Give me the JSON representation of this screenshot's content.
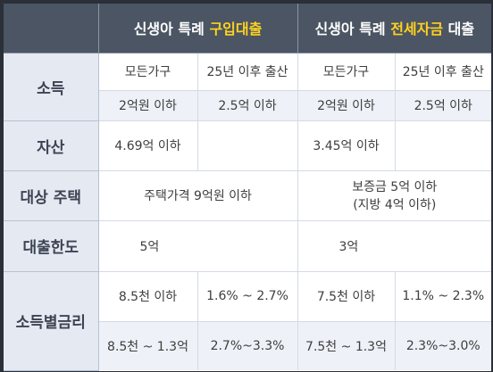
{
  "header": {
    "purchase_prefix": "신생아 특례 ",
    "purchase_highlight": "구입대출",
    "lease_prefix": "신생아 특례 ",
    "lease_highlight": "전세자금",
    "lease_suffix": " 대출",
    "highlight_color": "#ffd21f"
  },
  "rows": {
    "income": {
      "label": "소득",
      "purchase_all": "모든가구",
      "purchase_birth": "25년 이후 출산",
      "lease_all": "모든가구",
      "lease_birth": "25년 이후 출산",
      "purchase_all_limit": "2억원 이하",
      "purchase_birth_limit": "2.5억 이하",
      "lease_all_limit": "2억원 이하",
      "lease_birth_limit": "2.5억 이하"
    },
    "assets": {
      "label": "자산",
      "purchase": "4.69억 이하",
      "lease": "3.45억 이하"
    },
    "housing": {
      "label": "대상 주택",
      "purchase": "주택가격 9억원 이하",
      "lease_line1": "보증금 5억 이하",
      "lease_line2": "(지방 4억 이하)"
    },
    "limit": {
      "label": "대출한도",
      "purchase": "5억",
      "lease": "3억"
    },
    "rate": {
      "label": "소득별금리",
      "purchase_income_1": "8.5천 이하",
      "purchase_rate_1": "1.6% ~ 2.7%",
      "lease_income_1": "7.5천 이하",
      "lease_rate_1": "1.1% ~ 2.3%",
      "purchase_income_2": "8.5천 ~ 1.3억",
      "purchase_rate_2": "2.7%~3.3%",
      "lease_income_2": "7.5천 ~ 1.3억",
      "lease_rate_2": "2.3%~3.0%"
    }
  }
}
